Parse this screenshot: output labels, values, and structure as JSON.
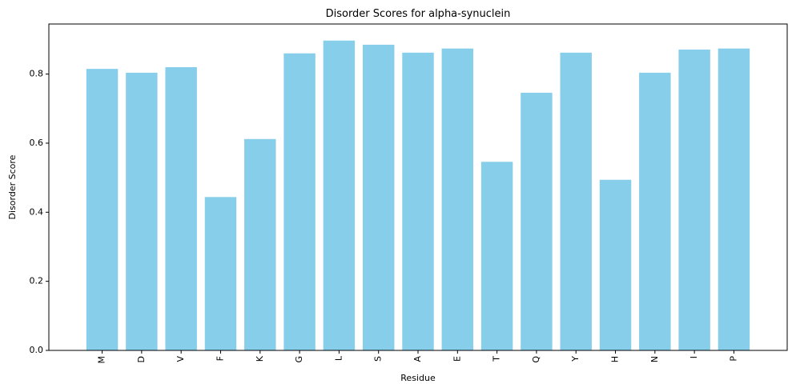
{
  "chart_data": {
    "type": "bar",
    "title": "Disorder Scores for alpha-synuclein",
    "xlabel": "Residue",
    "ylabel": "Disorder Score",
    "categories": [
      "M",
      "D",
      "V",
      "F",
      "K",
      "G",
      "L",
      "S",
      "A",
      "E",
      "T",
      "Q",
      "Y",
      "H",
      "N",
      "I",
      "P"
    ],
    "values": [
      0.815,
      0.804,
      0.82,
      0.444,
      0.612,
      0.86,
      0.897,
      0.885,
      0.862,
      0.874,
      0.546,
      0.746,
      0.862,
      0.494,
      0.804,
      0.871,
      0.874
    ],
    "ylim": [
      0,
      0.945
    ],
    "yticks": [
      "0.0",
      "0.2",
      "0.4",
      "0.6",
      "0.8"
    ],
    "ytick_values": [
      0,
      0.2,
      0.4,
      0.6,
      0.8
    ],
    "bar_color": "#87CEEB",
    "grid": false,
    "xtick_rotation": "vertical"
  }
}
